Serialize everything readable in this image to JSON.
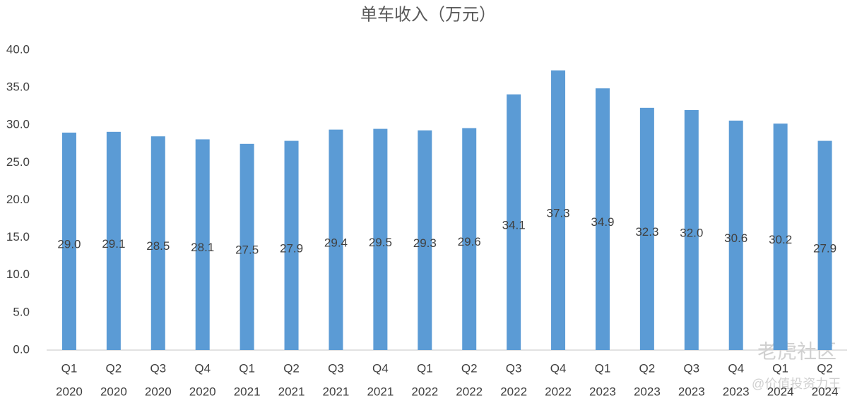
{
  "chart_data": {
    "type": "bar",
    "title": "单车收入（万元）",
    "categories": [
      "Q1",
      "Q2",
      "Q3",
      "Q4",
      "Q1",
      "Q2",
      "Q3",
      "Q4",
      "Q1",
      "Q2",
      "Q3",
      "Q4",
      "Q1",
      "Q2",
      "Q3",
      "Q4",
      "Q1",
      "Q2"
    ],
    "years": [
      "2020",
      "2020",
      "2020",
      "2020",
      "2021",
      "2021",
      "2021",
      "2021",
      "2022",
      "2022",
      "2022",
      "2022",
      "2023",
      "2023",
      "2023",
      "2023",
      "2024",
      "2024"
    ],
    "values": [
      29.0,
      29.1,
      28.5,
      28.1,
      27.5,
      27.9,
      29.4,
      29.5,
      29.3,
      29.6,
      34.1,
      37.3,
      34.9,
      32.3,
      32.0,
      30.6,
      30.2,
      27.9
    ],
    "value_labels": [
      "29.0",
      "29.1",
      "28.5",
      "28.1",
      "27.5",
      "27.9",
      "29.4",
      "29.5",
      "29.3",
      "29.6",
      "34.1",
      "37.3",
      "34.9",
      "32.3",
      "32.0",
      "30.6",
      "30.2",
      "27.9"
    ],
    "color": "#5b9bd5",
    "ylim": [
      0,
      40
    ],
    "yticks": [
      {
        "value": 0,
        "label": "0.0"
      },
      {
        "value": 5,
        "label": "5.0"
      },
      {
        "value": 10,
        "label": "10.0"
      },
      {
        "value": 15,
        "label": "15.0"
      },
      {
        "value": 20,
        "label": "20.0"
      },
      {
        "value": 25,
        "label": "25.0"
      },
      {
        "value": 30,
        "label": "30.0"
      },
      {
        "value": 35,
        "label": "35.0"
      },
      {
        "value": 40,
        "label": "40.0"
      }
    ],
    "grid": false,
    "watermark": [
      "老虎社区",
      "@价值投资力王"
    ]
  }
}
